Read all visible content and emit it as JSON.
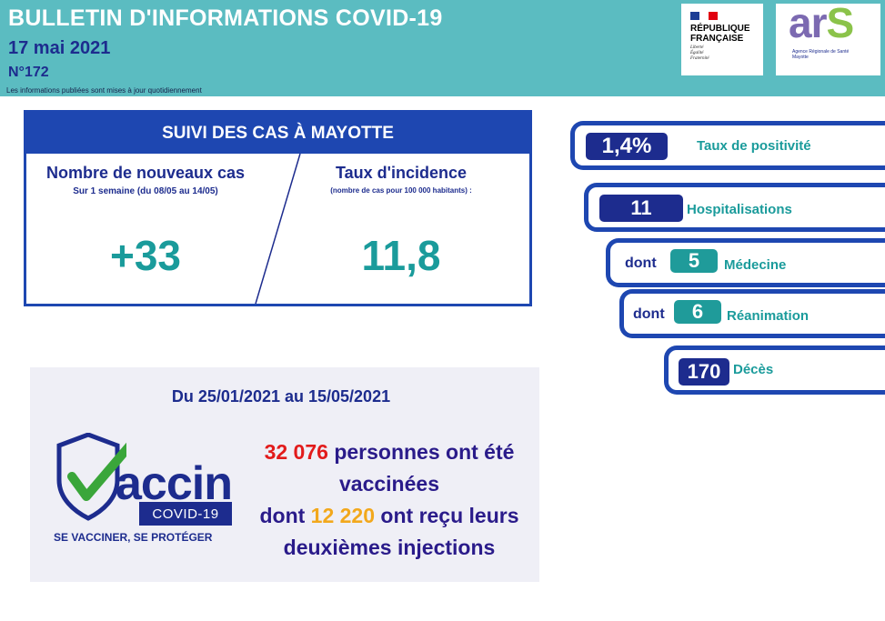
{
  "header": {
    "title": "BULLETIN D'INFORMATIONS COVID-19",
    "date": "17 mai 2021",
    "number": "N°172",
    "note": "Les informations publiées sont mises à jour quotidiennement"
  },
  "logos": {
    "republique": [
      "RÉPUBLIQUE",
      "FRANÇAISE"
    ],
    "republique_motto": [
      "Liberté",
      "Égalité",
      "Fraternité"
    ],
    "ars_sub": [
      "Agence Régionale de Santé",
      "Mayotte"
    ]
  },
  "suivi": {
    "title": "SUIVI DES CAS À MAYOTTE",
    "new_cases_label": "Nombre de nouveaux cas",
    "new_cases_sub": "Sur 1 semaine (du 08/05 au 14/05)",
    "new_cases_value": "+33",
    "incidence_label": "Taux d'incidence",
    "incidence_sub": "(nombre de cas pour 100 000 habitants) :",
    "incidence_value": "11,8"
  },
  "stats": {
    "positivite": {
      "value": "1,4%",
      "label": "Taux de positivité"
    },
    "hospitalisations": {
      "value": "11",
      "label": "Hospitalisations"
    },
    "medecine": {
      "prefix": "dont",
      "value": "5",
      "label": "Médecine"
    },
    "reanimation": {
      "prefix": "dont",
      "value": "6",
      "label": "Réanimation"
    },
    "deces": {
      "value": "170",
      "label": "Décès"
    }
  },
  "vaccin": {
    "period": "Du 25/01/2021 au 15/05/2021",
    "vaccinated_count": "32 076",
    "vaccinated_text_1": "personnes ont été",
    "vaccinated_text_2": "vaccinées",
    "second_prefix": "dont",
    "second_count": "12 220",
    "second_text_1": "ont reçu leurs",
    "second_text_2": "deuxièmes injections",
    "logo_word": "accin",
    "logo_box": "COVID-19",
    "logo_slogan": "SE VACCINER, SE PROTÉGER"
  },
  "colors": {
    "header_bg": "#5bbcc1",
    "navy": "#1d2c8e",
    "blue": "#1e47b1",
    "teal": "#1a9b9b",
    "red": "#e21b1b",
    "orange": "#f2a81c"
  }
}
